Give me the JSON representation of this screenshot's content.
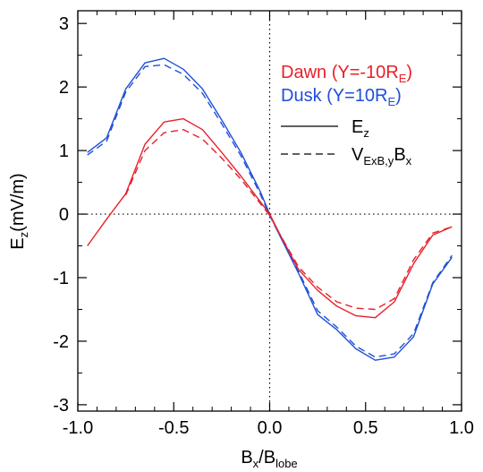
{
  "chart_data": {
    "type": "line",
    "xlabel": {
      "main": "B",
      "sub1": "x",
      "sep": "/B",
      "sub2": "lobe"
    },
    "ylabel": {
      "main": "E",
      "sub": "z",
      "rest": "(mV/m)"
    },
    "xlim": [
      -1.0,
      1.0
    ],
    "ylim": [
      -3.1,
      3.2
    ],
    "xticks": [
      -1.0,
      -0.5,
      0.0,
      0.5,
      1.0
    ],
    "xtick_labels": [
      "-1.0",
      "-0.5",
      "0.0",
      "0.5",
      "1.0"
    ],
    "yticks": [
      -3,
      -2,
      -1,
      0,
      1,
      2,
      3
    ],
    "ytick_labels": [
      "-3",
      "-2",
      "-1",
      "0",
      "1",
      "2",
      "3"
    ],
    "zero_lines": true,
    "legend_position": "top-right",
    "legend": {
      "dawn": {
        "text": "Dawn (Y=-10R",
        "sub": "E",
        "close": ")"
      },
      "dusk": {
        "text": "Dusk (Y=10R",
        "sub": "E",
        "close": ")"
      },
      "solid": {
        "text": "E",
        "sub": "z"
      },
      "dashed": {
        "text": "V",
        "sub": "ExB,y",
        "mid": "B",
        "sub2": "x"
      }
    },
    "colors": {
      "dawn": "#e8202a",
      "dusk": "#1f4fd8"
    },
    "x": [
      -0.95,
      -0.85,
      -0.75,
      -0.65,
      -0.55,
      -0.45,
      -0.35,
      -0.25,
      -0.15,
      -0.05,
      0.0,
      0.05,
      0.15,
      0.25,
      0.35,
      0.45,
      0.55,
      0.65,
      0.75,
      0.85,
      0.95
    ],
    "series": [
      {
        "key": "dusk_ez",
        "group": "dusk",
        "style": "solid",
        "values": [
          0.97,
          1.2,
          1.97,
          2.38,
          2.45,
          2.28,
          1.97,
          1.48,
          0.97,
          0.36,
          0.0,
          -0.32,
          -0.93,
          -1.58,
          -1.82,
          -2.12,
          -2.3,
          -2.25,
          -1.93,
          -1.1,
          -0.68
        ]
      },
      {
        "key": "dusk_v",
        "group": "dusk",
        "style": "dashed",
        "values": [
          0.93,
          1.15,
          1.92,
          2.32,
          2.35,
          2.2,
          1.9,
          1.42,
          0.92,
          0.32,
          -0.02,
          -0.32,
          -0.9,
          -1.52,
          -1.78,
          -2.08,
          -2.25,
          -2.2,
          -1.88,
          -1.08,
          -0.65
        ]
      },
      {
        "key": "dawn_ez",
        "group": "dawn",
        "style": "solid",
        "values": [
          -0.5,
          -0.08,
          0.32,
          1.1,
          1.45,
          1.5,
          1.33,
          0.97,
          0.6,
          0.2,
          0.0,
          -0.3,
          -0.87,
          -1.2,
          -1.45,
          -1.6,
          -1.63,
          -1.38,
          -0.78,
          -0.33,
          -0.2
        ]
      },
      {
        "key": "dawn_v",
        "group": "dawn",
        "style": "dashed",
        "values": [
          null,
          null,
          0.3,
          1.0,
          1.28,
          1.33,
          1.18,
          0.88,
          0.55,
          0.17,
          -0.02,
          -0.3,
          -0.83,
          -1.15,
          -1.38,
          -1.48,
          -1.5,
          -1.33,
          -0.72,
          -0.3,
          -0.2
        ]
      }
    ]
  }
}
